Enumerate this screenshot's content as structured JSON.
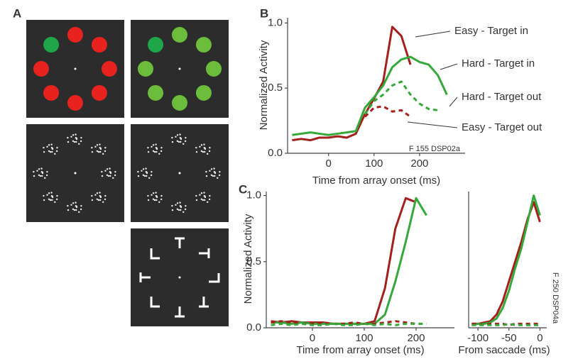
{
  "panel_labels": [
    "A",
    "B",
    "C"
  ],
  "chart_data": [
    {
      "type": "line",
      "ylabel": "Normalized Activity",
      "xlabel": "Time from array onset (ms)",
      "annotation": "F 155 DSP02a",
      "xlim": [
        -90,
        300
      ],
      "ylim": [
        0,
        1.04
      ],
      "xticks": [
        0,
        100,
        200
      ],
      "yticks": [
        {
          "value": 0,
          "label": "0.0"
        },
        0.5,
        {
          "value": 1,
          "label": "1.0"
        }
      ],
      "x": [
        -80,
        -60,
        -40,
        -20,
        0,
        20,
        40,
        60,
        80,
        100,
        120,
        140,
        160,
        180,
        200,
        220,
        240,
        260
      ],
      "series": [
        {
          "name": "Easy - Target in",
          "color": "#a3201d",
          "style": "solid",
          "values": [
            0.1,
            0.11,
            0.1,
            0.12,
            0.12,
            0.13,
            0.12,
            0.15,
            0.3,
            0.42,
            0.55,
            0.97,
            0.9,
            0.68,
            null,
            null,
            null,
            null
          ]
        },
        {
          "name": "Hard - Target in",
          "color": "#35a83a",
          "style": "solid",
          "values": [
            0.14,
            0.15,
            0.16,
            0.15,
            0.14,
            0.15,
            0.16,
            0.17,
            0.35,
            0.43,
            0.52,
            0.66,
            0.72,
            0.74,
            0.7,
            0.68,
            0.6,
            0.45
          ]
        },
        {
          "name": "Hard - Target out",
          "color": "#35a83a",
          "style": "dashed",
          "values": [
            null,
            null,
            null,
            null,
            null,
            null,
            null,
            null,
            0.3,
            0.4,
            0.45,
            0.52,
            0.55,
            0.45,
            0.38,
            0.34,
            0.33,
            null
          ]
        },
        {
          "name": "Easy - Target out",
          "color": "#a3201d",
          "style": "dashed",
          "values": [
            null,
            null,
            null,
            null,
            null,
            null,
            null,
            null,
            0.28,
            0.35,
            0.36,
            0.32,
            0.33,
            0.28,
            null,
            null,
            null,
            null
          ]
        }
      ]
    },
    {
      "type": "line",
      "ylabel": "Normalized Activity",
      "xlabel": "Time from array onset (ms)",
      "xlim": [
        -89,
        274
      ],
      "ylim": [
        0,
        1.03
      ],
      "xticks": [
        0,
        100,
        200
      ],
      "yticks": [
        {
          "value": 0,
          "label": "0.0"
        },
        0.5,
        {
          "value": 1,
          "label": "1.0"
        }
      ],
      "x": [
        -80,
        -60,
        -40,
        -20,
        0,
        20,
        40,
        60,
        80,
        100,
        120,
        140,
        160,
        180,
        200,
        220
      ],
      "series": [
        {
          "color": "#a3201d",
          "style": "solid",
          "values": [
            0.05,
            0.04,
            0.05,
            0.04,
            0.04,
            0.04,
            0.03,
            0.03,
            0.03,
            0.03,
            0.05,
            0.3,
            0.75,
            0.98,
            0.95,
            null
          ]
        },
        {
          "color": "#35a83a",
          "style": "solid",
          "values": [
            0.04,
            0.04,
            0.03,
            0.04,
            0.03,
            0.03,
            0.03,
            0.03,
            0.03,
            0.03,
            0.03,
            0.1,
            0.35,
            0.65,
            0.98,
            0.85
          ]
        },
        {
          "color": "#a3201d",
          "style": "dashed",
          "values": [
            0.04,
            0.05,
            0.04,
            0.03,
            0.03,
            0.04,
            0.03,
            0.03,
            0.04,
            0.03,
            0.03,
            0.04,
            0.05,
            0.04,
            0.03,
            null
          ]
        },
        {
          "color": "#35a83a",
          "style": "dashed",
          "values": [
            0.02,
            0.03,
            0.02,
            0.03,
            0.02,
            0.02,
            0.03,
            0.02,
            0.02,
            0.03,
            0.02,
            0.03,
            0.02,
            0.03,
            0.03,
            0.03
          ]
        }
      ]
    },
    {
      "type": "line",
      "xlabel": "From saccade (ms)",
      "annotation": "F 250 DSP04a",
      "xlim": [
        -115,
        11
      ],
      "ylim": [
        0,
        1.03
      ],
      "xticks": [
        -100,
        -50,
        0
      ],
      "x": [
        -110,
        -100,
        -90,
        -80,
        -70,
        -60,
        -50,
        -40,
        -30,
        -20,
        -10,
        0
      ],
      "series": [
        {
          "color": "#a3201d",
          "style": "solid",
          "values": [
            0.03,
            0.03,
            0.04,
            0.05,
            0.1,
            0.2,
            0.35,
            0.5,
            0.65,
            0.82,
            0.95,
            0.8
          ]
        },
        {
          "color": "#35a83a",
          "style": "solid",
          "values": [
            0.02,
            0.03,
            0.03,
            0.04,
            0.07,
            0.15,
            0.28,
            0.45,
            0.6,
            0.8,
            1.0,
            0.85
          ]
        },
        {
          "color": "#a3201d",
          "style": "dashed",
          "values": [
            0.03,
            0.03,
            0.02,
            0.03,
            0.03,
            0.03,
            0.02,
            0.03,
            0.03,
            0.03,
            0.03,
            0.03
          ]
        },
        {
          "color": "#35a83a",
          "style": "dashed",
          "values": [
            0.02,
            0.02,
            0.02,
            0.02,
            0.02,
            0.02,
            0.03,
            0.02,
            0.02,
            0.02,
            0.02,
            0.02
          ]
        }
      ]
    }
  ]
}
